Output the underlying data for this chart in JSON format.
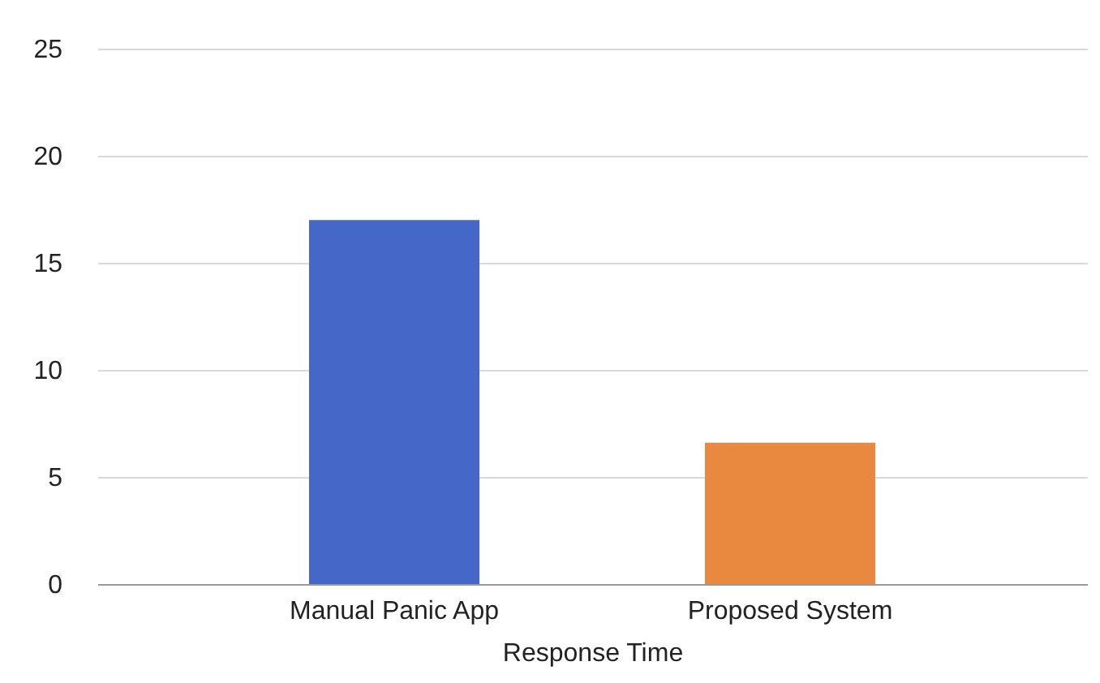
{
  "chart_data": {
    "type": "bar",
    "xlabel": "Response Time",
    "categories": [
      "Manual Panic App",
      "Proposed System"
    ],
    "values": [
      17,
      6.6
    ],
    "colors": [
      "#4568c8",
      "#e8893f"
    ],
    "ylim": [
      0,
      25
    ],
    "yticks": [
      0,
      5,
      10,
      15,
      20,
      25
    ],
    "grid": "y",
    "legend": false
  }
}
